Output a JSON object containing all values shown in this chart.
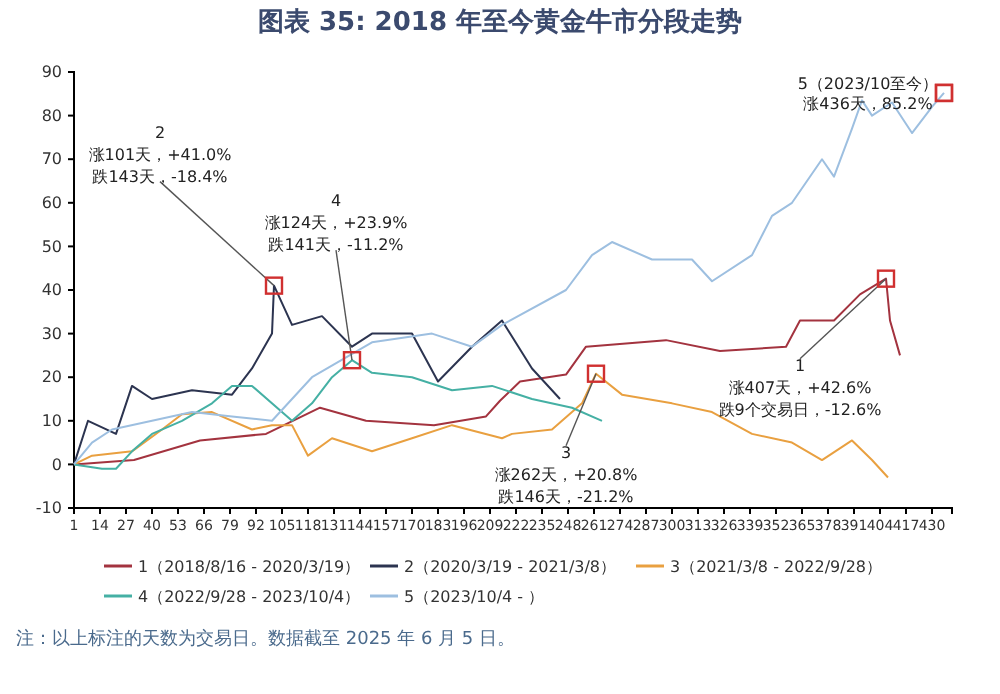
{
  "chart_data": {
    "type": "line",
    "title": "图表 35: 2018 年至今黄金牛市分段走势",
    "xlim": [
      1,
      440
    ],
    "xticks": [
      1,
      14,
      27,
      40,
      53,
      66,
      79,
      92,
      105,
      118,
      131,
      144,
      157,
      170,
      183,
      196,
      209,
      222,
      235,
      248,
      261,
      274,
      287,
      300,
      313,
      326,
      339,
      352,
      365,
      378,
      391,
      404,
      417,
      430
    ],
    "ylim": [
      -10,
      90
    ],
    "yticks": [
      -10,
      0,
      10,
      20,
      30,
      40,
      50,
      60,
      70,
      80,
      90
    ],
    "grid": false,
    "legend": "bottom",
    "marker": "none",
    "line_style": "solid",
    "series": [
      {
        "name": "1（2018/8/16 - 2020/3/19）",
        "color": "#a3333f",
        "x": [
          1,
          31,
          64,
          97,
          124,
          147,
          181,
          207,
          214,
          224,
          247,
          257,
          297,
          324,
          357,
          364,
          381,
          394,
          407,
          409,
          414
        ],
        "values": [
          0,
          1,
          5.5,
          7,
          13,
          10,
          9,
          11,
          14.6,
          19,
          20.6,
          27,
          28.5,
          26,
          27,
          33,
          33,
          39,
          42.6,
          33,
          25
        ]
      },
      {
        "name": "2（2020/3/19 - 2021/3/8）",
        "color": "#2c3450",
        "x": [
          1,
          8,
          22,
          30,
          40,
          60,
          80,
          90,
          100,
          101,
          110,
          125,
          140,
          150,
          170,
          183,
          200,
          215,
          230,
          244
        ],
        "values": [
          0,
          10,
          7,
          18,
          15,
          17,
          16,
          22,
          30,
          41,
          32,
          34,
          27,
          30,
          30,
          19,
          27,
          33,
          22,
          15
        ]
      },
      {
        "name": "3（2021/3/8 - 2022/9/28）",
        "color": "#e9a040",
        "x": [
          1,
          10,
          30,
          45,
          55,
          70,
          90,
          100,
          110,
          118,
          130,
          150,
          170,
          190,
          215,
          220,
          240,
          255,
          262,
          275,
          300,
          320,
          340,
          360,
          375,
          390,
          400,
          408
        ],
        "values": [
          0,
          2,
          3,
          8,
          11.5,
          12,
          8,
          9,
          9,
          2,
          6,
          3,
          6,
          9,
          6,
          7,
          8,
          14,
          20.8,
          16,
          14,
          12,
          7,
          5,
          1,
          5.5,
          1,
          -3
        ]
      },
      {
        "name": "4（2022/9/28 - 2023/10/4）",
        "color": "#45b0a4",
        "x": [
          1,
          15,
          22,
          30,
          40,
          55,
          70,
          80,
          90,
          110,
          120,
          130,
          140,
          150,
          170,
          190,
          210,
          230,
          250,
          265
        ],
        "values": [
          0,
          -1,
          -1,
          3,
          7,
          10,
          14,
          18,
          18,
          10,
          14,
          20,
          23.9,
          21,
          20,
          17,
          18,
          15,
          13,
          10
        ]
      },
      {
        "name": "5（2023/10/4 - ）",
        "color": "#9dbfe0",
        "x": [
          1,
          10,
          20,
          40,
          60,
          80,
          100,
          120,
          150,
          180,
          200,
          215,
          247,
          260,
          270,
          290,
          310,
          320,
          340,
          350,
          360,
          375,
          381,
          390,
          395,
          400,
          410,
          420,
          430,
          436
        ],
        "values": [
          0,
          5,
          8,
          10,
          12,
          11,
          10,
          20,
          28,
          30,
          27,
          32,
          40,
          48,
          51,
          47,
          47,
          42,
          48,
          57,
          60,
          70,
          66,
          77,
          83.5,
          80,
          83,
          76,
          82,
          85.2
        ]
      }
    ],
    "annotations": [
      {
        "text": "2\n涨101天，+41.0%\n跌143天，-18.4%",
        "x": 101,
        "y": 41
      },
      {
        "text": "4\n涨124天，+23.9%\n跌141天，-11.2%",
        "x": 140,
        "y": 23.9
      },
      {
        "text": "3\n涨262天，+20.8%\n跌146天，-21.2%",
        "x": 262,
        "y": 20.8
      },
      {
        "text": "1\n涨407天，+42.6%\n跌9个交易日，-12.6%",
        "x": 407,
        "y": 42.6
      },
      {
        "text": "5（2023/10至今）",
        "x": 436,
        "y": 85.2
      },
      {
        "text": "涨436天，85.2%",
        "x": 436,
        "y": 85.2
      },
      "注：以上标注的天数为交易日。数据截至 2025 年 6 月 5 日。"
    ]
  }
}
